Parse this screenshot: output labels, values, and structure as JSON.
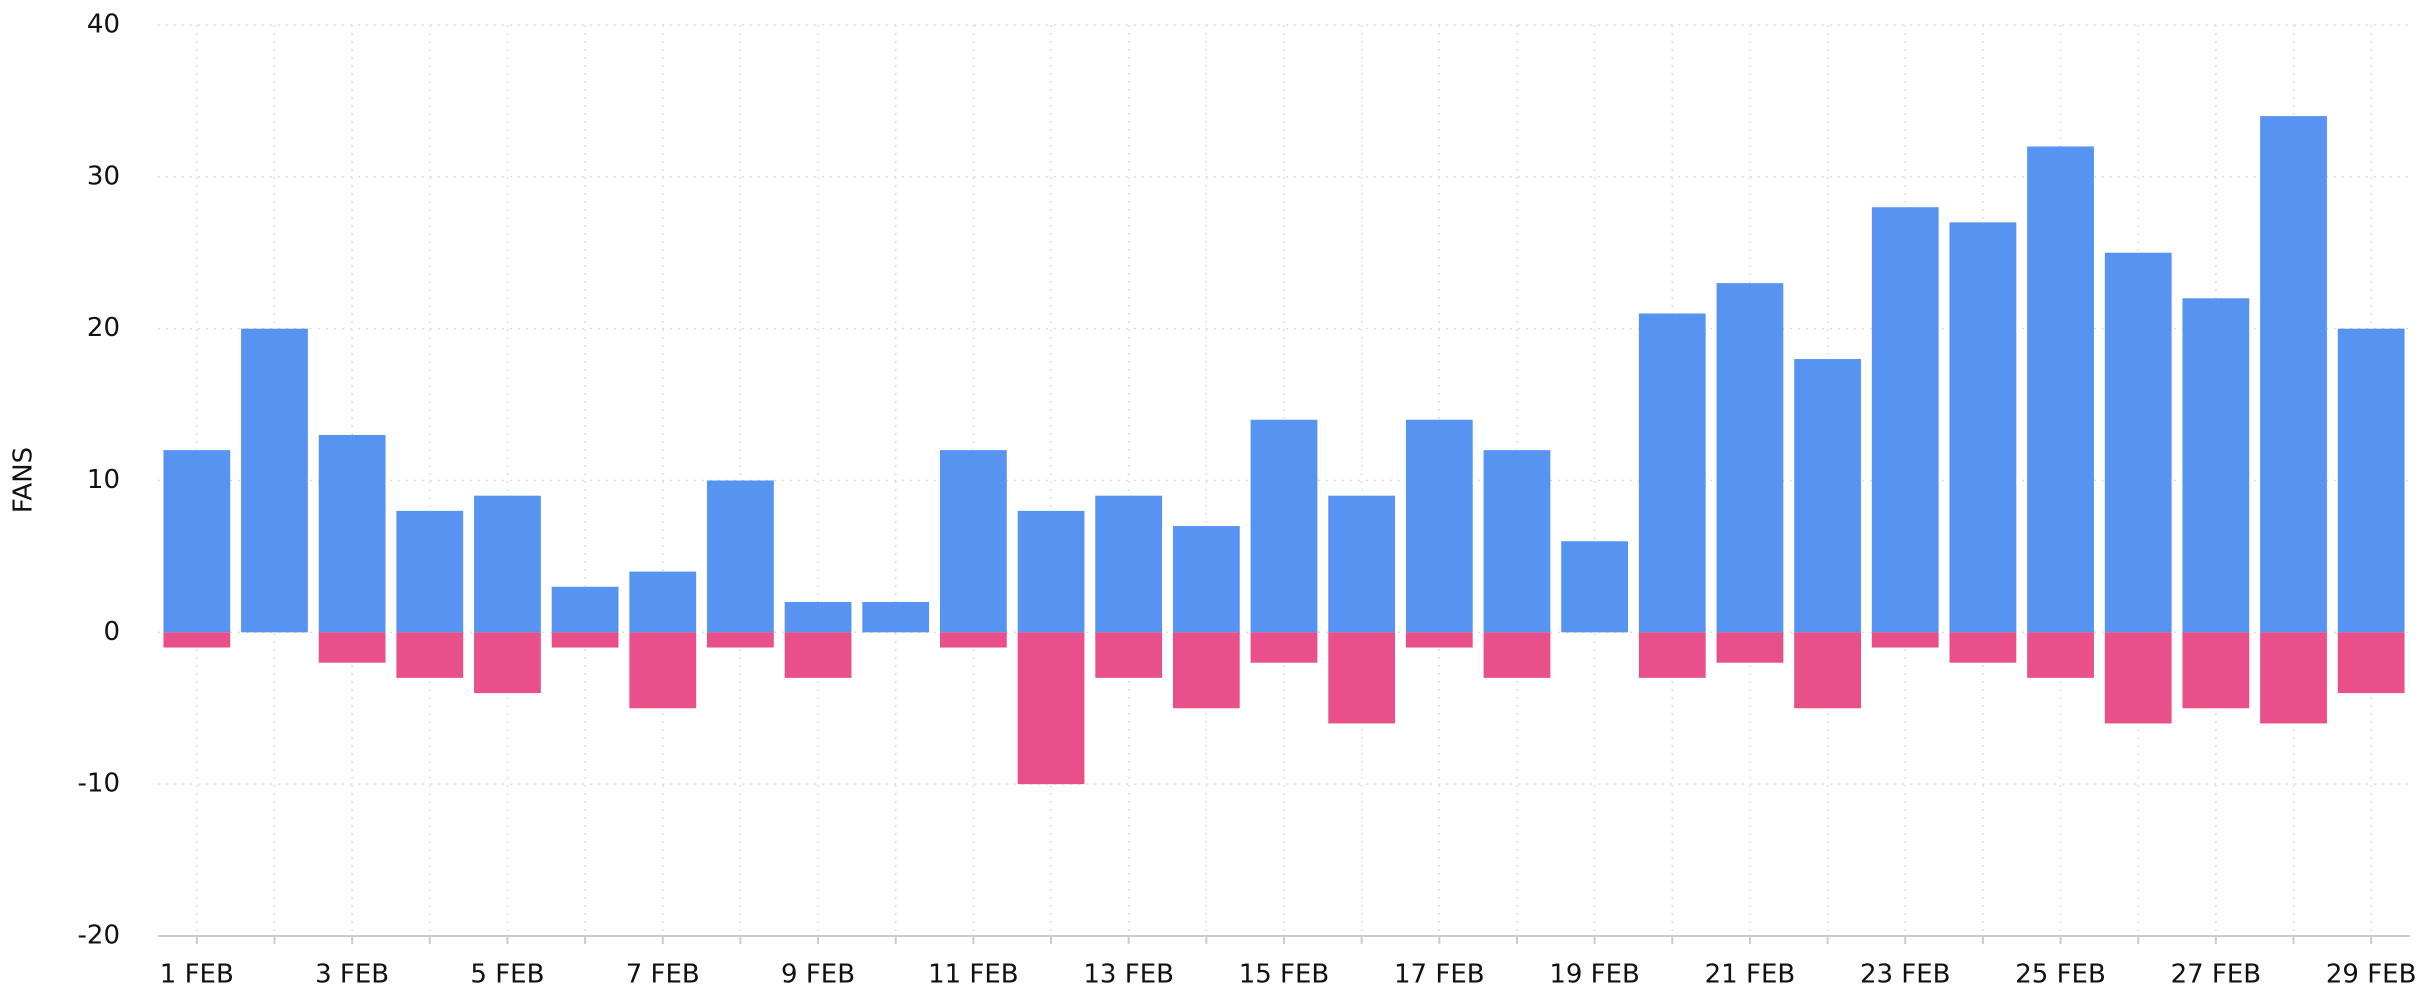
{
  "chart_data": {
    "type": "bar",
    "y_label": "FANS",
    "categories": [
      "1 FEB",
      null,
      "3 FEB",
      null,
      "5 FEB",
      null,
      "7 FEB",
      null,
      "9 FEB",
      null,
      "11 FEB",
      null,
      "13 FEB",
      null,
      "15 FEB",
      null,
      "17 FEB",
      null,
      "19 FEB",
      null,
      "21 FEB",
      null,
      "23 FEB",
      null,
      "25 FEB",
      null,
      "27 FEB",
      null,
      "29 FEB"
    ],
    "series": [
      {
        "color": "#5794f2",
        "values": [
          12,
          20,
          13,
          8,
          9,
          3,
          4,
          10,
          2,
          2,
          12,
          8,
          9,
          7,
          14,
          9,
          14,
          12,
          6,
          21,
          23,
          18,
          28,
          27,
          32,
          25,
          22,
          34,
          20
        ]
      },
      {
        "color": "#e9508a",
        "values": [
          -1,
          0,
          -2,
          -3,
          -4,
          -1,
          -5,
          -1,
          -3,
          0,
          -1,
          -10,
          -3,
          -5,
          -2,
          -6,
          -1,
          -3,
          0,
          -3,
          -2,
          -5,
          -1,
          -2,
          -3,
          -6,
          -5,
          -6,
          -4
        ]
      }
    ],
    "ylim": [
      -20,
      40
    ],
    "yticks": [
      -20,
      -10,
      0,
      10,
      20,
      30,
      40
    ],
    "grid": true
  }
}
